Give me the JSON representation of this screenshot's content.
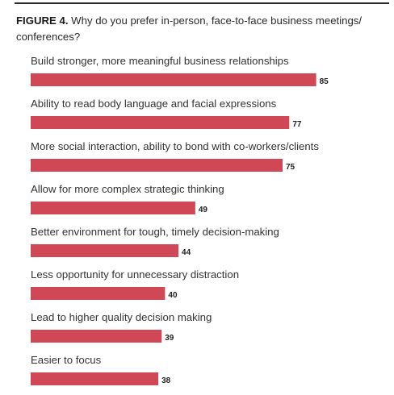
{
  "title": {
    "label": "FIGURE 4.",
    "text": "Why do you prefer in-person, face-to-face business meetings/ conferences?"
  },
  "colors": {
    "bar": "#d04855",
    "rule": "#2a2a2a"
  },
  "chart_data": {
    "type": "bar",
    "orientation": "horizontal",
    "title": "FIGURE 4. Why do you prefer in-person, face-to-face business meetings/ conferences?",
    "xlabel": "",
    "ylabel": "",
    "grid": false,
    "xlim": [
      0,
      100
    ],
    "categories": [
      "Build stronger, more meaningful business relationships",
      "Ability to read body language and facial expressions",
      "More social interaction, ability to bond with co-workers/clients",
      "Allow for more complex strategic thinking",
      "Better environment for tough, timely decision-making",
      "Less opportunity for unnecessary distraction",
      "Lead to higher quality decision making",
      "Easier to focus"
    ],
    "values": [
      85,
      77,
      75,
      49,
      44,
      40,
      39,
      38
    ]
  }
}
